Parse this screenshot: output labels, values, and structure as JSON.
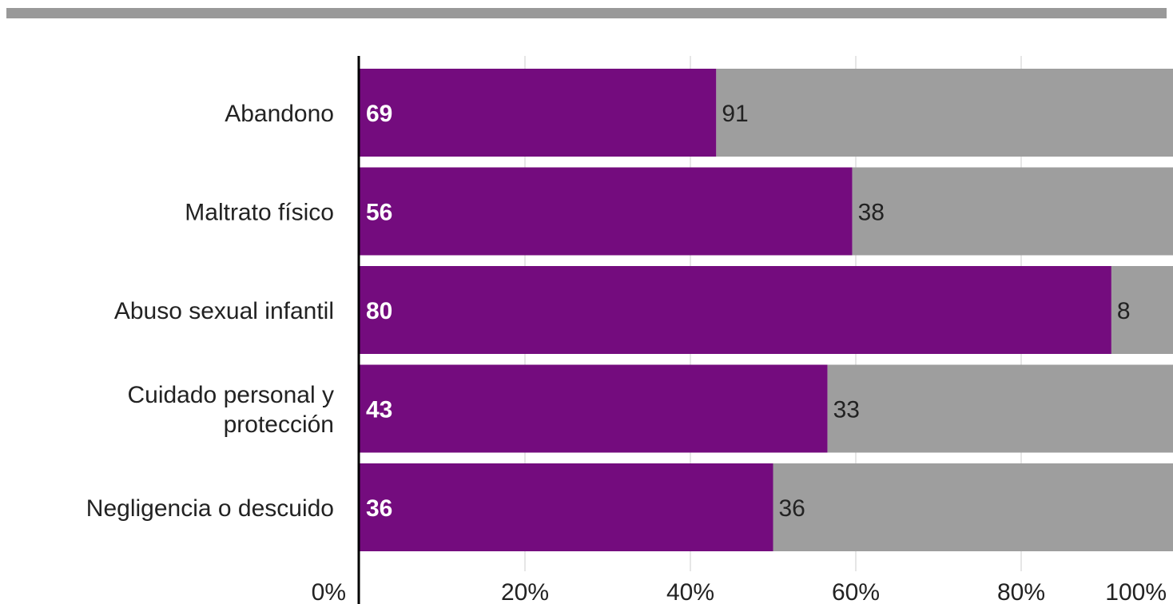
{
  "chart_data": {
    "type": "bar",
    "orientation": "horizontal",
    "stacked": "percent",
    "categories": [
      "Abandono",
      "Maltrato físico",
      "Abuso sexual infantil",
      "Cuidado personal y protección",
      "Negligencia o descuido"
    ],
    "category_lines": [
      [
        "Abandono"
      ],
      [
        "Maltrato físico"
      ],
      [
        "Abuso sexual infantil"
      ],
      [
        "Cuidado personal y",
        "protección"
      ],
      [
        "Negligencia o descuido"
      ]
    ],
    "series": [
      {
        "values": [
          69,
          56,
          80,
          43,
          36
        ],
        "color": "#740C7E"
      },
      {
        "values": [
          91,
          38,
          8,
          33,
          36
        ],
        "color": "#9E9E9E"
      }
    ],
    "xticks": [
      "0%",
      "20%",
      "40%",
      "60%",
      "80%",
      "100%"
    ],
    "xlim": [
      0,
      100
    ],
    "grid": true,
    "title": "",
    "xlabel": "",
    "ylabel": "",
    "colors": {
      "primary": "#740C7E",
      "secondary": "#9E9E9E",
      "grid": "#dddddd",
      "axis": "#000000",
      "top_bar": "#999999"
    }
  }
}
